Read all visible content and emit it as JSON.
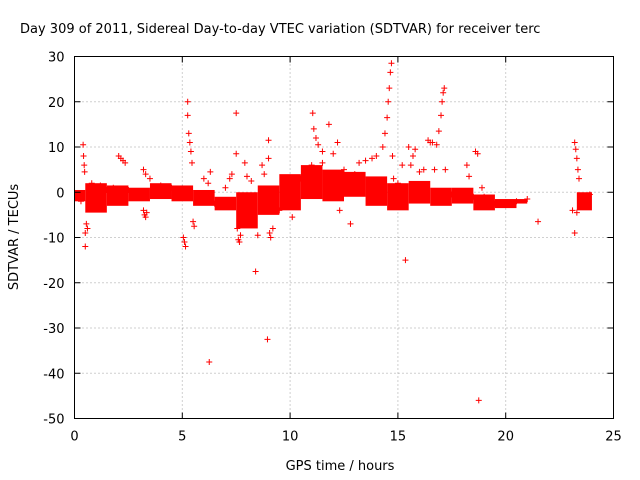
{
  "chart_data": {
    "type": "scatter",
    "title": "Day 309 of 2011, Sidereal Day-to-day VTEC variation (SDTVAR) for receiver terc",
    "xlabel": "GPS time / hours",
    "ylabel": "SDTVAR / TECUs",
    "xlim": [
      0,
      25
    ],
    "ylim": [
      -50,
      30
    ],
    "xticks": [
      0,
      5,
      10,
      15,
      20,
      25
    ],
    "yticks": [
      -50,
      -40,
      -30,
      -20,
      -10,
      0,
      10,
      20,
      30
    ],
    "grid": true,
    "marker": "+",
    "series": [
      {
        "name": "SDTVAR",
        "color": "#ff0000",
        "points": [
          [
            0.15,
            -1.0
          ],
          [
            0.3,
            -2.0
          ],
          [
            0.4,
            10.5
          ],
          [
            0.42,
            8.0
          ],
          [
            0.45,
            6.0
          ],
          [
            0.47,
            4.5
          ],
          [
            0.5,
            -12.0
          ],
          [
            0.5,
            -9.0
          ],
          [
            0.55,
            -7.0
          ],
          [
            0.6,
            -8.0
          ],
          [
            0.8,
            2.0
          ],
          [
            1.0,
            1.0
          ],
          [
            1.2,
            1.5
          ],
          [
            1.5,
            0.5
          ],
          [
            1.8,
            1.0
          ],
          [
            2.0,
            0.0
          ],
          [
            2.05,
            8.0
          ],
          [
            2.15,
            7.5
          ],
          [
            2.25,
            7.0
          ],
          [
            2.35,
            6.5
          ],
          [
            2.5,
            0.5
          ],
          [
            3.0,
            -0.5
          ],
          [
            3.2,
            -4.0
          ],
          [
            3.25,
            -5.0
          ],
          [
            3.3,
            -5.5
          ],
          [
            3.35,
            -4.5
          ],
          [
            3.2,
            5.0
          ],
          [
            3.3,
            4.0
          ],
          [
            3.5,
            3.0
          ],
          [
            4.0,
            1.5
          ],
          [
            4.5,
            1.0
          ],
          [
            5.0,
            0.5
          ],
          [
            5.05,
            -10.0
          ],
          [
            5.1,
            -11.0
          ],
          [
            5.15,
            -12.0
          ],
          [
            5.25,
            20.0
          ],
          [
            5.25,
            17.0
          ],
          [
            5.3,
            13.0
          ],
          [
            5.35,
            11.0
          ],
          [
            5.4,
            9.0
          ],
          [
            5.45,
            6.5
          ],
          [
            5.5,
            -6.5
          ],
          [
            5.55,
            -7.5
          ],
          [
            6.0,
            3.0
          ],
          [
            6.2,
            2.0
          ],
          [
            6.25,
            -37.5
          ],
          [
            6.3,
            4.5
          ],
          [
            6.5,
            -2.5
          ],
          [
            7.0,
            1.0
          ],
          [
            7.2,
            3.0
          ],
          [
            7.3,
            4.0
          ],
          [
            7.5,
            17.5
          ],
          [
            7.5,
            8.5
          ],
          [
            7.55,
            -8.0
          ],
          [
            7.6,
            -10.5
          ],
          [
            7.65,
            -11.0
          ],
          [
            7.7,
            -9.5
          ],
          [
            7.9,
            6.5
          ],
          [
            8.0,
            3.5
          ],
          [
            8.2,
            2.5
          ],
          [
            8.4,
            -17.5
          ],
          [
            8.5,
            -9.5
          ],
          [
            8.7,
            6.0
          ],
          [
            8.8,
            4.0
          ],
          [
            8.95,
            -32.5
          ],
          [
            9.0,
            11.5
          ],
          [
            9.0,
            7.5
          ],
          [
            9.05,
            -9.0
          ],
          [
            9.1,
            -10.0
          ],
          [
            9.2,
            -8.0
          ],
          [
            9.5,
            -4.0
          ],
          [
            10.0,
            -2.0
          ],
          [
            10.1,
            -5.5
          ],
          [
            10.3,
            1.0
          ],
          [
            10.5,
            3.0
          ],
          [
            10.8,
            4.5
          ],
          [
            11.0,
            6.0
          ],
          [
            11.05,
            17.5
          ],
          [
            11.1,
            14.0
          ],
          [
            11.2,
            12.0
          ],
          [
            11.3,
            10.5
          ],
          [
            11.5,
            9.0
          ],
          [
            11.5,
            6.5
          ],
          [
            11.8,
            15.0
          ],
          [
            12.0,
            8.5
          ],
          [
            12.2,
            11.0
          ],
          [
            12.3,
            -4.0
          ],
          [
            12.5,
            5.0
          ],
          [
            12.8,
            -7.0
          ],
          [
            13.0,
            4.0
          ],
          [
            13.2,
            6.5
          ],
          [
            13.5,
            7.0
          ],
          [
            13.8,
            7.5
          ],
          [
            14.0,
            8.0
          ],
          [
            14.3,
            10.0
          ],
          [
            14.4,
            13.0
          ],
          [
            14.5,
            16.5
          ],
          [
            14.55,
            20.0
          ],
          [
            14.6,
            23.0
          ],
          [
            14.65,
            26.5
          ],
          [
            14.7,
            28.5
          ],
          [
            14.75,
            8.0
          ],
          [
            14.8,
            3.0
          ],
          [
            15.0,
            2.0
          ],
          [
            15.2,
            6.0
          ],
          [
            15.3,
            -2.0
          ],
          [
            15.35,
            -15.0
          ],
          [
            15.5,
            10.0
          ],
          [
            15.6,
            6.0
          ],
          [
            15.7,
            8.0
          ],
          [
            15.8,
            9.5
          ],
          [
            16.0,
            4.5
          ],
          [
            16.2,
            5.0
          ],
          [
            16.4,
            11.5
          ],
          [
            16.5,
            11.0
          ],
          [
            16.6,
            11.0
          ],
          [
            16.7,
            5.0
          ],
          [
            16.8,
            10.5
          ],
          [
            16.9,
            13.5
          ],
          [
            17.0,
            17.0
          ],
          [
            17.05,
            20.0
          ],
          [
            17.1,
            22.0
          ],
          [
            17.15,
            23.0
          ],
          [
            17.2,
            5.0
          ],
          [
            17.5,
            -0.5
          ],
          [
            17.8,
            0.0
          ],
          [
            18.0,
            -1.0
          ],
          [
            18.2,
            6.0
          ],
          [
            18.3,
            3.5
          ],
          [
            18.5,
            -1.0
          ],
          [
            18.6,
            9.0
          ],
          [
            18.7,
            8.5
          ],
          [
            18.75,
            -46.0
          ],
          [
            18.9,
            1.0
          ],
          [
            19.0,
            -1.0
          ],
          [
            19.5,
            -2.5
          ],
          [
            20.0,
            -2.5
          ],
          [
            20.5,
            -2.0
          ],
          [
            21.0,
            -1.5
          ],
          [
            21.5,
            -6.5
          ],
          [
            23.1,
            -4.0
          ],
          [
            23.2,
            11.0
          ],
          [
            23.2,
            -9.0
          ],
          [
            23.25,
            9.5
          ],
          [
            23.3,
            7.5
          ],
          [
            23.3,
            -4.5
          ],
          [
            23.35,
            5.0
          ],
          [
            23.4,
            3.0
          ],
          [
            23.5,
            -2.5
          ],
          [
            23.6,
            -3.0
          ],
          [
            23.7,
            -2.0
          ],
          [
            23.8,
            -1.0
          ],
          [
            23.9,
            -0.5
          ]
        ],
        "bands": [
          {
            "from": 0.0,
            "to": 0.5,
            "low": -2.0,
            "high": 0.5
          },
          {
            "from": 0.5,
            "to": 1.5,
            "low": -4.5,
            "high": 2.0
          },
          {
            "from": 1.5,
            "to": 2.5,
            "low": -3.0,
            "high": 1.5
          },
          {
            "from": 2.5,
            "to": 3.5,
            "low": -2.0,
            "high": 1.0
          },
          {
            "from": 3.5,
            "to": 4.5,
            "low": -1.5,
            "high": 2.0
          },
          {
            "from": 4.5,
            "to": 5.5,
            "low": -2.0,
            "high": 1.5
          },
          {
            "from": 5.5,
            "to": 6.5,
            "low": -3.0,
            "high": 0.5
          },
          {
            "from": 6.5,
            "to": 7.5,
            "low": -4.0,
            "high": -1.0
          },
          {
            "from": 7.5,
            "to": 8.5,
            "low": -8.0,
            "high": 0.0
          },
          {
            "from": 8.5,
            "to": 9.5,
            "low": -5.0,
            "high": 1.5
          },
          {
            "from": 9.5,
            "to": 10.5,
            "low": -4.0,
            "high": 4.0
          },
          {
            "from": 10.5,
            "to": 11.5,
            "low": -1.5,
            "high": 6.0
          },
          {
            "from": 11.5,
            "to": 12.5,
            "low": -2.0,
            "high": 5.0
          },
          {
            "from": 12.5,
            "to": 13.5,
            "low": -1.0,
            "high": 4.5
          },
          {
            "from": 13.5,
            "to": 14.5,
            "low": -3.0,
            "high": 3.5
          },
          {
            "from": 14.5,
            "to": 15.5,
            "low": -4.0,
            "high": 2.0
          },
          {
            "from": 15.5,
            "to": 16.5,
            "low": -2.5,
            "high": 2.5
          },
          {
            "from": 16.5,
            "to": 17.5,
            "low": -3.0,
            "high": 1.0
          },
          {
            "from": 17.5,
            "to": 18.5,
            "low": -2.5,
            "high": 1.0
          },
          {
            "from": 18.5,
            "to": 19.5,
            "low": -4.0,
            "high": -0.5
          },
          {
            "from": 19.5,
            "to": 20.5,
            "low": -3.5,
            "high": -1.5
          },
          {
            "from": 20.5,
            "to": 21.0,
            "low": -2.5,
            "high": -1.5
          },
          {
            "from": 23.3,
            "to": 24.0,
            "low": -4.0,
            "high": 0.0
          }
        ]
      }
    ]
  }
}
